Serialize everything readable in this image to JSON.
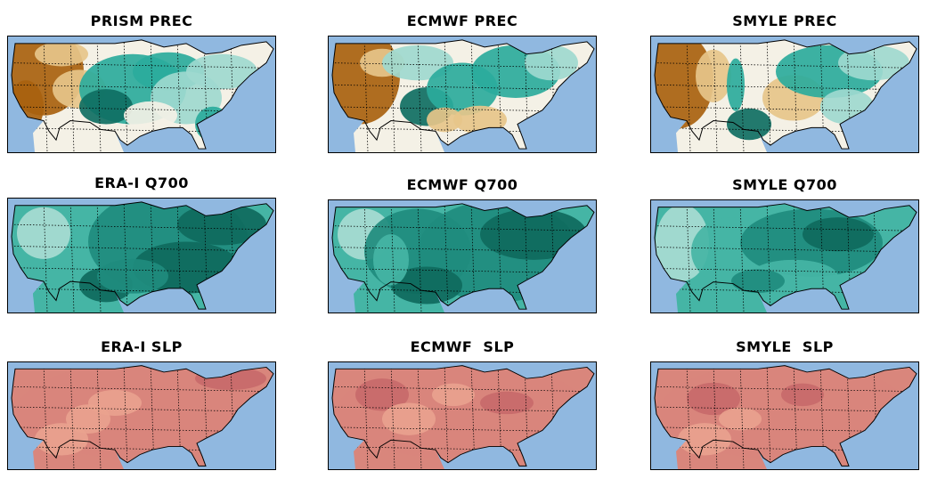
{
  "panels": [
    {
      "title": "PRISM PREC",
      "variable": "precipitation",
      "palette": "brbg",
      "colors": [
        "#a8620f",
        "#e6c58a",
        "#f4f1e6",
        "#9ed9cf",
        "#2bab9c",
        "#0f6f63"
      ]
    },
    {
      "title": "ECMWF PREC",
      "variable": "precipitation",
      "palette": "brbg",
      "colors": [
        "#a8620f",
        "#e6c58a",
        "#f4f1e6",
        "#9ed9cf",
        "#2bab9c",
        "#0f6f63"
      ]
    },
    {
      "title": "SMYLE PREC",
      "variable": "precipitation",
      "palette": "brbg",
      "colors": [
        "#a8620f",
        "#e6c58a",
        "#f4f1e6",
        "#9ed9cf",
        "#2bab9c",
        "#0f6f63"
      ]
    },
    {
      "title": "ERA-I Q700",
      "variable": "specific humidity 700hPa",
      "palette": "teal",
      "colors": [
        "#e6f3ee",
        "#a8dcd2",
        "#45b5a5",
        "#1f8c7e",
        "#0f6a5d"
      ]
    },
    {
      "title": "ECMWF Q700",
      "variable": "specific humidity 700hPa",
      "palette": "teal",
      "colors": [
        "#e6f3ee",
        "#a8dcd2",
        "#45b5a5",
        "#1f8c7e",
        "#0f6a5d"
      ]
    },
    {
      "title": "SMYLE Q700",
      "variable": "specific humidity 700hPa",
      "palette": "teal",
      "colors": [
        "#e6f3ee",
        "#a8dcd2",
        "#45b5a5",
        "#1f8c7e",
        "#0f6a5d"
      ]
    },
    {
      "title": "ERA-I SLP",
      "variable": "sea level pressure",
      "palette": "red",
      "colors": [
        "#e9a28e",
        "#d9867c",
        "#c86a6a"
      ]
    },
    {
      "title": "ECMWF  SLP",
      "variable": "sea level pressure",
      "palette": "red",
      "colors": [
        "#e9a28e",
        "#d9867c",
        "#c86a6a"
      ]
    },
    {
      "title": "SMYLE  SLP",
      "variable": "sea level pressure",
      "palette": "red",
      "colors": [
        "#e9a28e",
        "#d9867c",
        "#c86a6a"
      ]
    }
  ],
  "colors": {
    "ocean": "#90b8e0",
    "border": "#000000"
  }
}
